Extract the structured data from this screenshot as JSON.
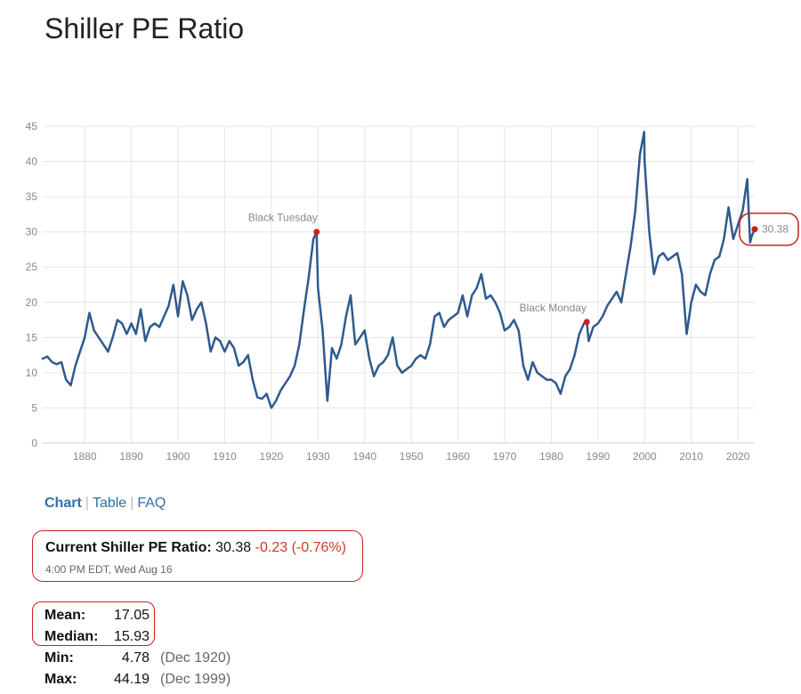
{
  "page": {
    "title": "Shiller PE Ratio"
  },
  "nav": {
    "tabs": [
      "Chart",
      "Table",
      "FAQ"
    ],
    "active": "Chart"
  },
  "current": {
    "label": "Current Shiller PE Ratio:",
    "value": "30.38",
    "change": "-0.23 (-0.76%)",
    "timestamp": "4:00 PM EDT, Wed Aug 16"
  },
  "stats": [
    {
      "label": "Mean:",
      "value": "17.05",
      "date": ""
    },
    {
      "label": "Median:",
      "value": "15.93",
      "date": ""
    },
    {
      "label": "Min:",
      "value": "4.78",
      "date": "(Dec 1920)"
    },
    {
      "label": "Max:",
      "value": "44.19",
      "date": "(Dec 1999)"
    }
  ],
  "colors": {
    "line": "#2f5a8e",
    "highlight": "#cc1f1f",
    "link": "#2f6ea8",
    "change": "#cc3a1f"
  },
  "chart_data": {
    "type": "line",
    "title": "Shiller PE Ratio",
    "xlim": [
      1871,
      2023.6
    ],
    "ylim": [
      0,
      45
    ],
    "xticks": [
      1880,
      1890,
      1900,
      1910,
      1920,
      1930,
      1940,
      1950,
      1960,
      1970,
      1980,
      1990,
      2000,
      2010,
      2020
    ],
    "yticks": [
      0,
      5,
      10,
      15,
      20,
      25,
      30,
      35,
      40,
      45
    ],
    "grid": true,
    "series": [
      {
        "name": "Shiller PE Ratio",
        "x": [
          1871,
          1872,
          1873,
          1874,
          1875,
          1876,
          1877,
          1878,
          1879,
          1880,
          1881,
          1882,
          1883,
          1884,
          1885,
          1886,
          1887,
          1888,
          1889,
          1890,
          1891,
          1892,
          1893,
          1894,
          1895,
          1896,
          1897,
          1898,
          1899,
          1900,
          1901,
          1902,
          1903,
          1904,
          1905,
          1906,
          1907,
          1908,
          1909,
          1910,
          1911,
          1912,
          1913,
          1914,
          1915,
          1916,
          1917,
          1918,
          1919,
          1920,
          1921,
          1922,
          1923,
          1924,
          1925,
          1926,
          1927,
          1928,
          1929,
          1929.7,
          1930,
          1931,
          1932,
          1933,
          1934,
          1935,
          1936,
          1937,
          1938,
          1939,
          1940,
          1941,
          1942,
          1943,
          1944,
          1945,
          1946,
          1947,
          1948,
          1949,
          1950,
          1951,
          1952,
          1953,
          1954,
          1955,
          1956,
          1957,
          1958,
          1959,
          1960,
          1961,
          1962,
          1963,
          1964,
          1965,
          1966,
          1967,
          1968,
          1969,
          1970,
          1971,
          1972,
          1973,
          1974,
          1975,
          1976,
          1977,
          1978,
          1979,
          1980,
          1981,
          1982,
          1983,
          1984,
          1985,
          1986,
          1987,
          1987.6,
          1988,
          1989,
          1990,
          1991,
          1992,
          1993,
          1994,
          1995,
          1996,
          1997,
          1998,
          1999,
          1999.9,
          2000,
          2001,
          2002,
          2003,
          2004,
          2005,
          2006,
          2007,
          2008,
          2009,
          2010,
          2011,
          2012,
          2013,
          2014,
          2015,
          2016,
          2017,
          2018,
          2019,
          2020,
          2021,
          2022,
          2022.6,
          2023,
          2023.6
        ],
        "values": [
          12.0,
          12.3,
          11.5,
          11.2,
          11.5,
          9.0,
          8.2,
          11.0,
          13.0,
          15.0,
          18.5,
          16.0,
          15.0,
          14.0,
          13.0,
          15.0,
          17.5,
          17.0,
          15.5,
          17.0,
          15.5,
          19.0,
          14.5,
          16.5,
          17.0,
          16.5,
          18.0,
          19.5,
          22.5,
          18.0,
          23.0,
          21.0,
          17.5,
          19.0,
          20.0,
          17.0,
          13.0,
          15.0,
          14.5,
          13.0,
          14.5,
          13.5,
          11.0,
          11.5,
          12.5,
          9.0,
          6.5,
          6.3,
          7.0,
          5.0,
          6.0,
          7.5,
          8.5,
          9.5,
          11.0,
          14.0,
          19.0,
          23.5,
          29.0,
          30.0,
          22.0,
          16.0,
          6.0,
          13.5,
          12.0,
          14.0,
          18.0,
          21.0,
          14.0,
          15.0,
          16.0,
          12.0,
          9.5,
          11.0,
          11.5,
          12.5,
          15.0,
          11.0,
          10.0,
          10.5,
          11.0,
          12.0,
          12.5,
          12.0,
          14.0,
          18.0,
          18.5,
          16.5,
          17.5,
          18.0,
          18.5,
          21.0,
          18.0,
          21.0,
          22.0,
          24.0,
          20.5,
          21.0,
          20.0,
          18.5,
          16.0,
          16.5,
          17.5,
          16.0,
          11.0,
          9.0,
          11.5,
          10.0,
          9.5,
          9.0,
          9.0,
          8.5,
          7.0,
          9.5,
          10.5,
          12.5,
          15.5,
          17.0,
          17.2,
          14.5,
          16.5,
          17.0,
          18.0,
          19.5,
          20.5,
          21.5,
          20.0,
          24.0,
          28.0,
          33.0,
          41.0,
          44.2,
          40.0,
          30.0,
          24.0,
          26.5,
          27.0,
          26.0,
          26.5,
          27.0,
          24.0,
          15.5,
          20.0,
          22.5,
          21.5,
          21.0,
          24.0,
          26.0,
          26.5,
          29.0,
          33.5,
          29.0,
          31.0,
          33.0,
          37.5,
          28.5,
          29.5,
          30.38
        ]
      }
    ],
    "annotations": [
      {
        "x": 1929.7,
        "y": 30.0,
        "text": "Black Tuesday"
      },
      {
        "x": 1987.6,
        "y": 17.2,
        "text": "Black Monday"
      }
    ],
    "last_value": {
      "x": 2023.6,
      "y": 30.38,
      "text": "30.38"
    }
  }
}
